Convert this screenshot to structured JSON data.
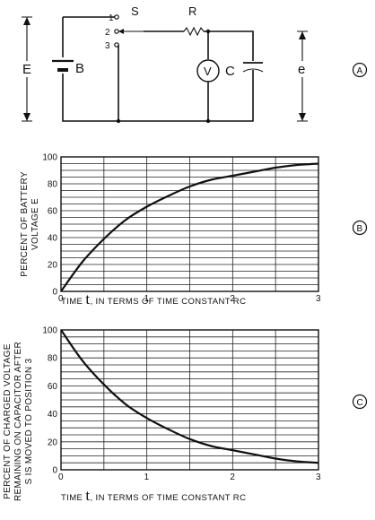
{
  "circuit": {
    "switch_label": "S",
    "resistor_label": "R",
    "battery_label": "B",
    "source_voltage_label": "E",
    "capacitor_label": "C",
    "capacitor_voltage_label": "e",
    "voltmeter_label": "V",
    "switch_positions": [
      "1",
      "2",
      "3"
    ],
    "panel_label": "A"
  },
  "chart_data": [
    {
      "type": "line",
      "panel_label": "B",
      "title": "",
      "xlabel_prefix": "TIME",
      "xlabel_symbol": "t",
      "xlabel_suffix": ", IN TERMS OF TIME CONSTANT  RC",
      "ylabel_line1": "PERCENT OF BATTERY",
      "ylabel_line2": "VOLTAGE  E",
      "xlim": [
        0,
        3
      ],
      "ylim": [
        0,
        100
      ],
      "x_ticks": [
        "0",
        "1",
        "2",
        "3"
      ],
      "y_ticks": [
        "0",
        "20",
        "40",
        "60",
        "80",
        "100"
      ],
      "grid": true,
      "series": [
        {
          "x": [
            0,
            0.25,
            0.5,
            0.75,
            1.0,
            1.25,
            1.5,
            1.75,
            2.0,
            2.25,
            2.5,
            2.75,
            3.0
          ],
          "values": [
            0,
            22,
            39,
            53,
            63,
            71,
            78,
            83,
            86,
            89,
            92,
            94,
            95
          ]
        }
      ]
    },
    {
      "type": "line",
      "panel_label": "C",
      "title": "",
      "xlabel_prefix": "TIME",
      "xlabel_symbol": "t",
      "xlabel_suffix": ", IN TERMS OF TIME CONSTANT  RC",
      "ylabel_line1": "PERCENT OF CHARGED VOLTAGE",
      "ylabel_line2": "REMAINING ON CAPACITOR AFTER",
      "ylabel_line3": "S IS MOVED TO POSITION 3",
      "xlim": [
        0,
        3
      ],
      "ylim": [
        0,
        100
      ],
      "x_ticks": [
        "0",
        "1",
        "2",
        "3"
      ],
      "y_ticks": [
        "0",
        "20",
        "40",
        "60",
        "80",
        "100"
      ],
      "grid": true,
      "series": [
        {
          "x": [
            0,
            0.25,
            0.5,
            0.75,
            1.0,
            1.25,
            1.5,
            1.75,
            2.0,
            2.25,
            2.5,
            2.75,
            3.0
          ],
          "values": [
            100,
            78,
            61,
            47,
            37,
            29,
            22,
            17,
            14,
            11,
            8,
            6,
            5
          ]
        }
      ]
    }
  ]
}
